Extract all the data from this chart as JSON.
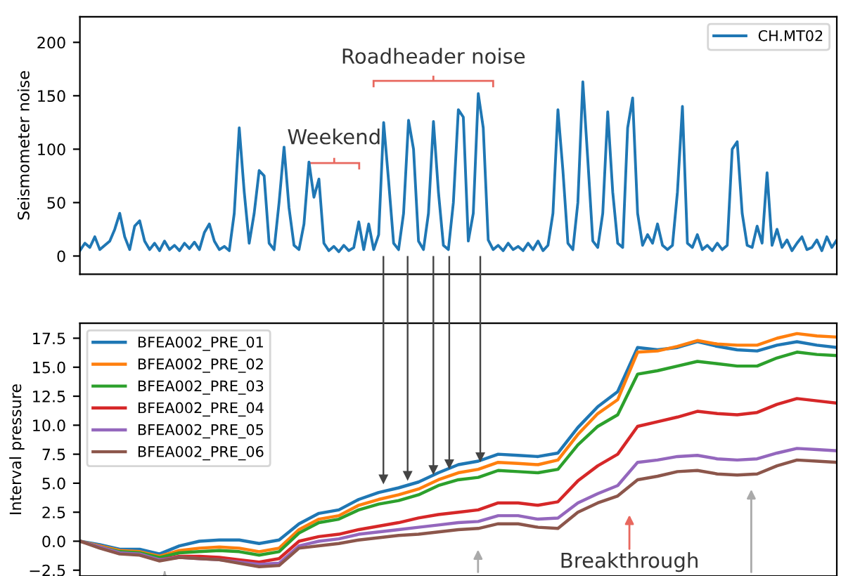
{
  "chart_data": [
    {
      "type": "line",
      "ylabel": "Seismometer noise",
      "ylim": [
        -17,
        224
      ],
      "yticks": [
        0,
        50,
        100,
        150,
        200
      ],
      "tick_labels": "y",
      "grid": false,
      "legend": "top right",
      "annotations": [
        "Roadheader noise",
        "Weekend"
      ],
      "categories": [
        null,
        null,
        null,
        null,
        null,
        null,
        null,
        null,
        null,
        null,
        null,
        null,
        null,
        null,
        null,
        null,
        null,
        null,
        null,
        null,
        null,
        null,
        null,
        null,
        null,
        null,
        null,
        null,
        null,
        null,
        null,
        null,
        null,
        null,
        null,
        null,
        null,
        null,
        null,
        null,
        null,
        null,
        null,
        null,
        null,
        null,
        null,
        null,
        null,
        null,
        null,
        null,
        null,
        null,
        null,
        null,
        null,
        null,
        null,
        null,
        null,
        null,
        null,
        null,
        null,
        null,
        null,
        null,
        null,
        null,
        null,
        null,
        null,
        null,
        null,
        null,
        null,
        null,
        null,
        null,
        null,
        null,
        null,
        null,
        null,
        null,
        null,
        null,
        null,
        null,
        null,
        null,
        null,
        null,
        null,
        null,
        null,
        null,
        null,
        null,
        null,
        null,
        null,
        null,
        null,
        null,
        null,
        null,
        null,
        null,
        null,
        null,
        null,
        null,
        null,
        null,
        null,
        null,
        null,
        null,
        null,
        null,
        null,
        null,
        null,
        null,
        null,
        null,
        null,
        null,
        null,
        null,
        null,
        null,
        null,
        null,
        null,
        null,
        null,
        null,
        null,
        null,
        null,
        null,
        null,
        null,
        null,
        null,
        null,
        null,
        null,
        null,
        null
      ],
      "series": [
        {
          "name": "CH.MT02",
          "color": "#1f77b4",
          "values": [
            5,
            12,
            8,
            18,
            6,
            10,
            14,
            25,
            40,
            18,
            6,
            28,
            33,
            14,
            6,
            12,
            5,
            14,
            6,
            10,
            5,
            12,
            7,
            13,
            6,
            22,
            30,
            14,
            6,
            9,
            5,
            40,
            120,
            60,
            12,
            40,
            80,
            75,
            12,
            6,
            50,
            102,
            45,
            10,
            6,
            30,
            88,
            55,
            72,
            12,
            5,
            9,
            4,
            10,
            5,
            8,
            32,
            6,
            30,
            6,
            20,
            125,
            70,
            12,
            6,
            40,
            127,
            100,
            14,
            6,
            40,
            126,
            60,
            10,
            6,
            50,
            137,
            130,
            14,
            40,
            152,
            120,
            15,
            6,
            10,
            5,
            12,
            6,
            9,
            5,
            12,
            6,
            14,
            5,
            10,
            40,
            137,
            80,
            12,
            6,
            50,
            163,
            90,
            14,
            8,
            40,
            135,
            60,
            12,
            8,
            120,
            148,
            40,
            10,
            20,
            12,
            30,
            10,
            6,
            10,
            60,
            140,
            12,
            8,
            20,
            6,
            10,
            5,
            12,
            6,
            10,
            100,
            107,
            40,
            10,
            8,
            28,
            12,
            78,
            10,
            25,
            8,
            15,
            5,
            12,
            18,
            6,
            8,
            15,
            5,
            18,
            8,
            15
          ]
        }
      ]
    },
    {
      "type": "line",
      "ylabel": "Interval pressure",
      "ylim": [
        -3.0,
        18.8
      ],
      "yticks": [
        {
          "value": -2.5,
          "label": "−2.5"
        },
        {
          "value": 0,
          "label": "0.0"
        },
        2.5,
        {
          "value": 5,
          "label": "5.0"
        },
        7.5,
        {
          "value": 10,
          "label": "10.0"
        },
        12.5,
        {
          "value": 15,
          "label": "15.0"
        },
        17.5
      ],
      "tick_labels": "y",
      "grid": false,
      "legend": "top left",
      "annotations": [
        "Breakthrough"
      ],
      "categories": [
        null,
        null,
        null,
        null,
        null,
        null,
        null,
        null,
        null,
        null,
        null,
        null,
        null,
        null,
        null,
        null,
        null,
        null,
        null,
        null,
        null,
        null,
        null,
        null,
        null,
        null,
        null,
        null,
        null,
        null,
        null,
        null,
        null,
        null,
        null,
        null,
        null,
        null,
        null
      ],
      "series": [
        {
          "name": "BFEA002_PRE_01",
          "color": "#1f77b4",
          "values": [
            0,
            -0.3,
            -0.7,
            -0.7,
            -1.1,
            -0.4,
            0,
            0.1,
            0.1,
            -0.2,
            0.1,
            1.5,
            2.4,
            2.7,
            3.6,
            4.2,
            4.6,
            5.1,
            5.9,
            6.6,
            6.9,
            7.5,
            7.4,
            7.3,
            7.6,
            9.8,
            11.6,
            12.9,
            16.7,
            16.5,
            16.7,
            17.2,
            16.8,
            16.5,
            16.4,
            16.9,
            17.2,
            16.9,
            16.7
          ]
        },
        {
          "name": "BFEA002_PRE_02",
          "color": "#ff7f0e",
          "values": [
            0,
            -0.4,
            -0.8,
            -0.9,
            -1.3,
            -0.8,
            -0.6,
            -0.5,
            -0.6,
            -0.9,
            -0.6,
            1.0,
            1.9,
            2.2,
            3.1,
            3.6,
            4.0,
            4.5,
            5.3,
            5.9,
            6.2,
            6.8,
            6.7,
            6.6,
            7.0,
            9.2,
            11.0,
            12.2,
            16.3,
            16.4,
            16.8,
            17.3,
            17.0,
            16.9,
            16.9,
            17.5,
            17.9,
            17.7,
            17.6
          ]
        },
        {
          "name": "BFEA002_PRE_03",
          "color": "#2ca02c",
          "values": [
            0,
            -0.5,
            -0.9,
            -1.0,
            -1.4,
            -1.0,
            -0.9,
            -0.8,
            -0.9,
            -1.2,
            -0.9,
            0.7,
            1.6,
            1.9,
            2.7,
            3.2,
            3.5,
            4.0,
            4.8,
            5.3,
            5.5,
            6.1,
            6.0,
            5.9,
            6.2,
            8.3,
            9.9,
            10.9,
            14.4,
            14.7,
            15.1,
            15.5,
            15.3,
            15.1,
            15.1,
            15.8,
            16.3,
            16.1,
            16.0
          ]
        },
        {
          "name": "BFEA002_PRE_04",
          "color": "#d62728",
          "values": [
            null,
            null,
            null,
            null,
            -1.6,
            -1.3,
            -1.3,
            -1.4,
            -1.6,
            -1.8,
            -1.5,
            0.0,
            0.4,
            0.6,
            1.0,
            1.3,
            1.6,
            2.0,
            2.3,
            2.5,
            2.7,
            3.3,
            3.3,
            3.1,
            3.4,
            5.2,
            6.5,
            7.5,
            9.9,
            10.3,
            10.7,
            11.2,
            11.0,
            10.9,
            11.1,
            11.8,
            12.3,
            12.1,
            11.9
          ]
        },
        {
          "name": "BFEA002_PRE_05",
          "color": "#9467bd",
          "values": [
            0,
            -0.5,
            -1.0,
            -1.1,
            -1.6,
            -1.4,
            -1.5,
            -1.6,
            -1.8,
            -2.0,
            -1.9,
            -0.4,
            0.0,
            0.2,
            0.6,
            0.8,
            1.0,
            1.2,
            1.4,
            1.6,
            1.7,
            2.2,
            2.2,
            1.9,
            2.0,
            3.3,
            4.1,
            4.8,
            6.8,
            7.0,
            7.3,
            7.4,
            7.1,
            7.0,
            7.1,
            7.6,
            8.0,
            7.9,
            7.8
          ]
        },
        {
          "name": "BFEA002_PRE_06",
          "color": "#8c564b",
          "values": [
            0,
            -0.6,
            -1.1,
            -1.2,
            -1.7,
            -1.4,
            -1.5,
            -1.6,
            -1.9,
            -2.2,
            -2.1,
            -0.6,
            -0.4,
            -0.2,
            0.1,
            0.3,
            0.5,
            0.6,
            0.8,
            1.0,
            1.1,
            1.5,
            1.5,
            1.2,
            1.1,
            2.5,
            3.3,
            3.9,
            5.3,
            5.6,
            6.0,
            6.1,
            5.8,
            5.7,
            5.8,
            6.5,
            7.0,
            6.9,
            6.8
          ]
        }
      ]
    }
  ]
}
